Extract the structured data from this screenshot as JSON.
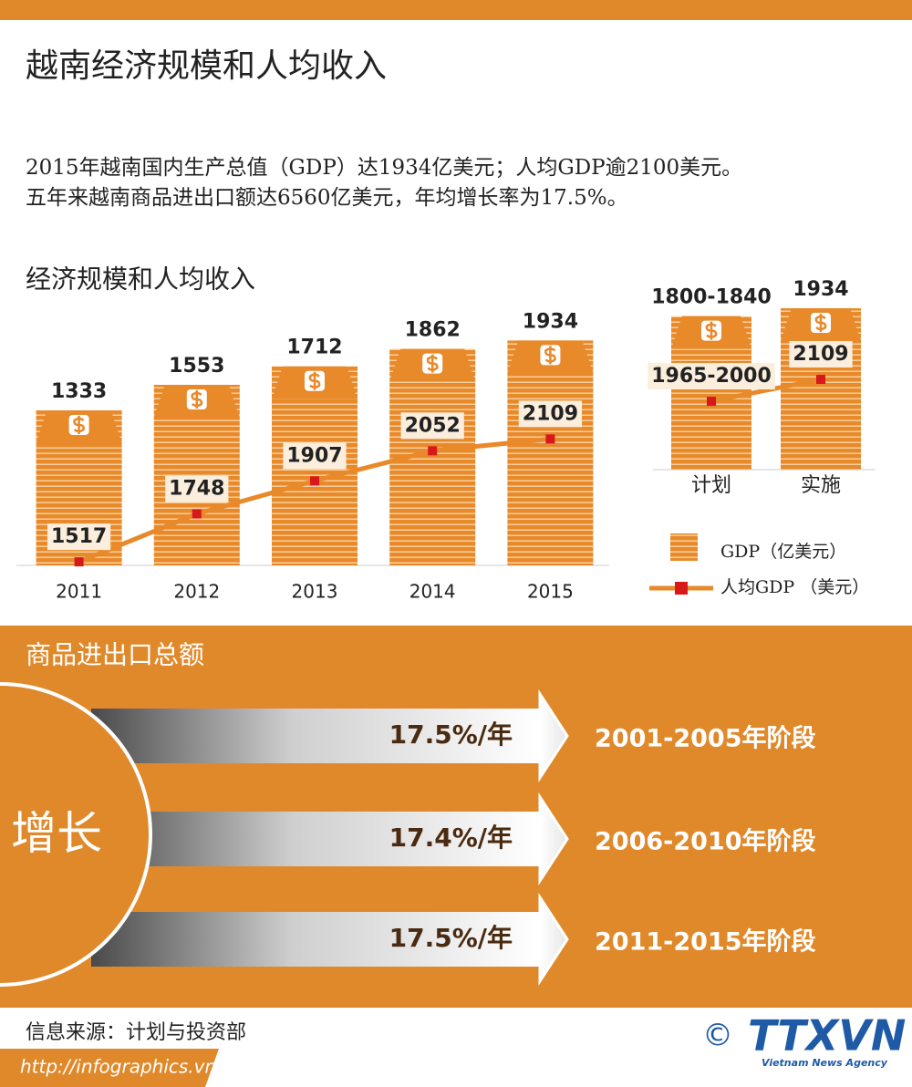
{
  "header": {
    "title": "越南经济规模和人均收入"
  },
  "intro": [
    "2015年越南国内生产总值（GDP）达1934亿美元；人均GDP逾2100美元。",
    "五年来越南商品进出口额达6560亿美元，年均增长率为17.5%。"
  ],
  "chart_data": [
    {
      "type": "bar",
      "title": "经济规模和人均收入",
      "categories": [
        "2011",
        "2012",
        "2013",
        "2014",
        "2015"
      ],
      "series": [
        {
          "name": "GDP（亿美元）",
          "color": "#e8892a",
          "values": [
            1333,
            1553,
            1712,
            1862,
            1934
          ]
        },
        {
          "name": "人均GDP （美元）",
          "type": "line",
          "axis": "y2",
          "color": "#d7191c",
          "line_color": "#e8892a",
          "values": [
            1517,
            1748,
            1907,
            2052,
            2109
          ]
        }
      ],
      "ylim": [
        0,
        2000
      ],
      "y2lim": [
        1500,
        2620
      ]
    },
    {
      "type": "bar",
      "categories": [
        "计划",
        "实施"
      ],
      "series": [
        {
          "color": "#e8892a",
          "values": [
            1840,
            1934
          ],
          "value_labels": [
            "1800-1840",
            "1934"
          ]
        },
        {
          "type": "line",
          "axis": "y2",
          "color": "#d7191c",
          "line_color": "#e8892a",
          "values": [
            2000,
            2109
          ],
          "value_labels": [
            "1965-2000",
            "2109"
          ]
        }
      ],
      "ylim": [
        0,
        2000
      ],
      "y2lim": [
        1660,
        2490
      ]
    }
  ],
  "trade": {
    "title": "商品进出口总额",
    "circle_label": "增长",
    "rows": [
      {
        "rate": "17.5%/年",
        "period": "2001-2005年阶段"
      },
      {
        "rate": "17.4%/年",
        "period": "2006-2010年阶段"
      },
      {
        "rate": "17.5%/年",
        "period": "2011-2015年阶段"
      }
    ]
  },
  "footer": {
    "source": "信息来源：计划与投资部",
    "url": "http://infographics.vn",
    "copyright": "©",
    "logo": "TTXVN",
    "agency": "Vietnam News Agency"
  }
}
